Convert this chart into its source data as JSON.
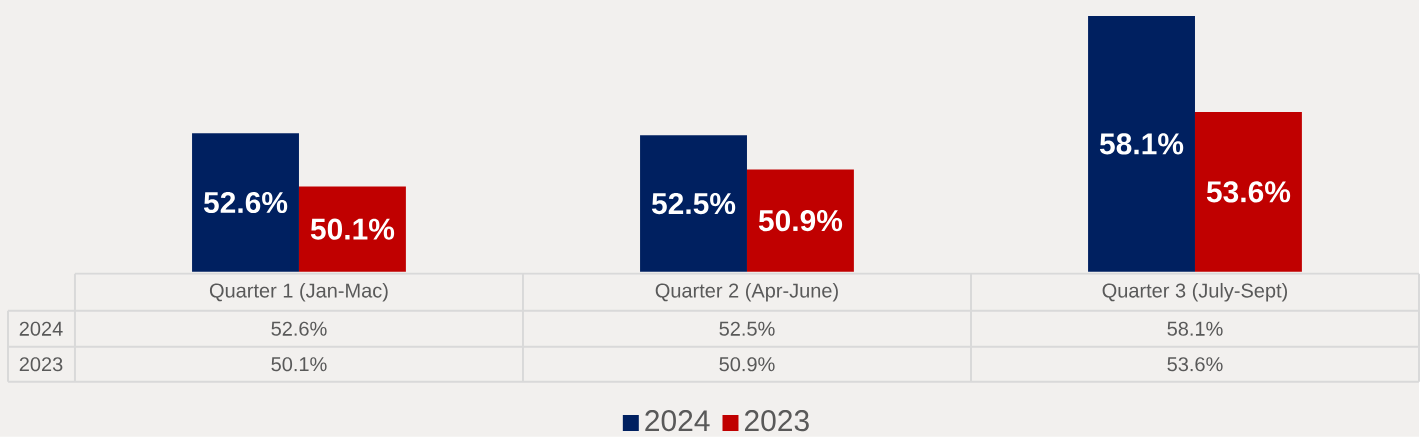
{
  "chart_data": {
    "type": "bar",
    "categories": [
      "Quarter 1 (Jan-Mac)",
      "Quarter 2 (Apr-June)",
      "Quarter 3 (July-Sept)"
    ],
    "series": [
      {
        "name": "2024",
        "color": "#002060",
        "values": [
          52.6,
          52.5,
          58.1
        ],
        "value_labels": [
          "52.6%",
          "52.5%",
          "58.1%"
        ]
      },
      {
        "name": "2023",
        "color": "#c00000",
        "values": [
          50.1,
          50.9,
          53.6
        ],
        "value_labels": [
          "50.1%",
          "50.9%",
          "53.6%"
        ]
      }
    ],
    "ylim": [
      46.1,
      58.1
    ],
    "legend": "bottom"
  }
}
